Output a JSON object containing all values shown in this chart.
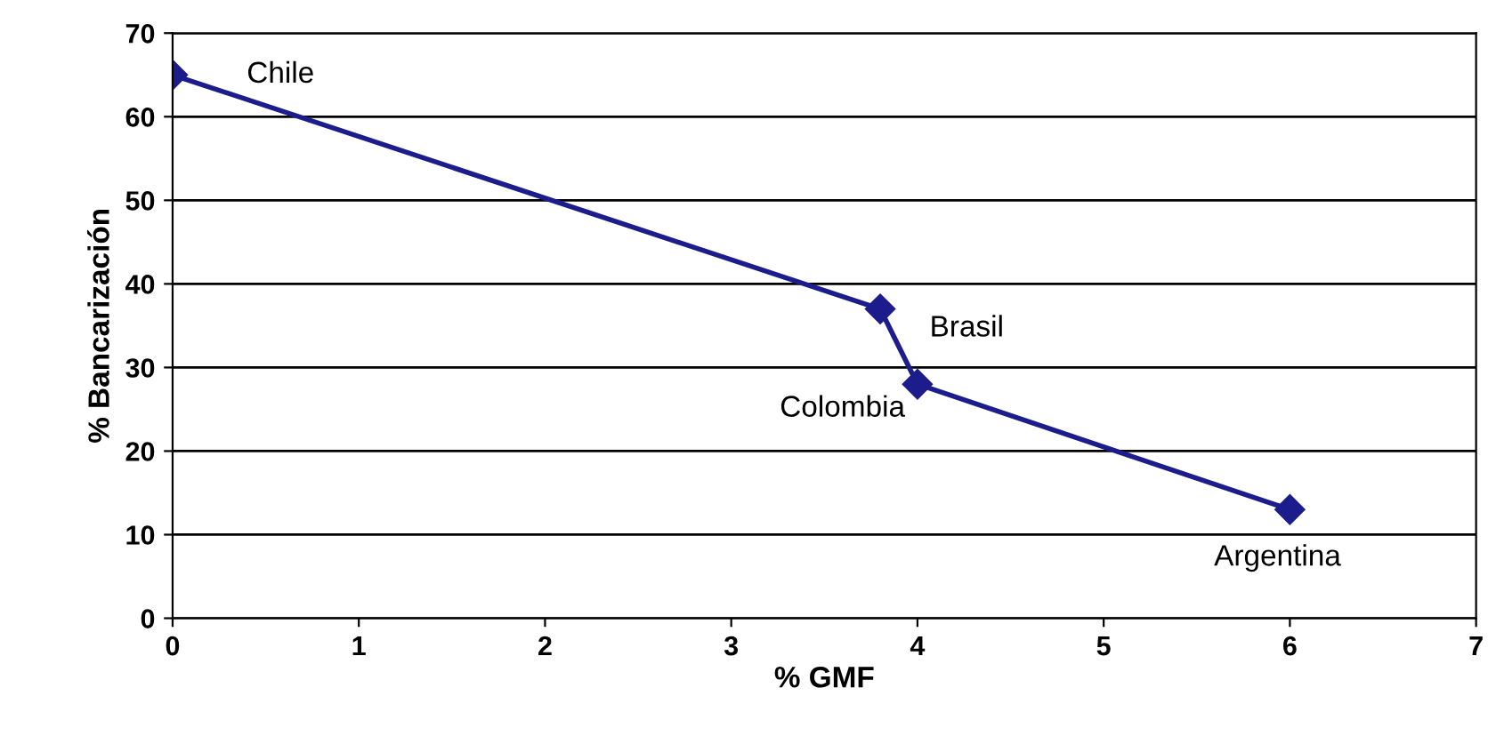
{
  "chart_data": {
    "type": "line",
    "xlabel": "% GMF",
    "ylabel": "% Bancarización",
    "x": [
      0,
      3.8,
      4,
      6
    ],
    "series": [
      {
        "color": "#1c1c8c",
        "values": [
          65,
          37,
          28,
          13
        ]
      }
    ],
    "annotations": [
      {
        "text": "Chile",
        "x": 0,
        "y": 65
      },
      {
        "text": "Brasil",
        "x": 3.8,
        "y": 37
      },
      {
        "text": "Colombia",
        "x": 4,
        "y": 28
      },
      {
        "text": "Argentina",
        "x": 6,
        "y": 13
      }
    ],
    "xlim": [
      0,
      7
    ],
    "xticks": [
      0,
      1,
      2,
      3,
      4,
      5,
      6,
      7
    ],
    "ylim": [
      0,
      70
    ],
    "yticks": [
      0,
      10,
      20,
      30,
      40,
      50,
      60,
      70
    ],
    "grid": "y",
    "marker": "diamond",
    "line_style": "solid",
    "legend": false
  }
}
